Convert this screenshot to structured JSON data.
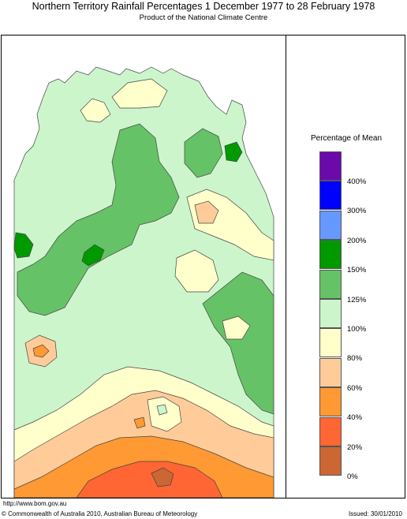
{
  "header": {
    "title": "Northern Territory Rainfall Percentages 1 December 1977 to 28 February 1978",
    "subtitle": "Product of the National Climate Centre"
  },
  "legend": {
    "title": "Percentage of Mean",
    "bins": [
      {
        "label": "400%",
        "color": "#6a0aab"
      },
      {
        "label": "300%",
        "color": "#0000ff"
      },
      {
        "label": "200%",
        "color": "#6699ff"
      },
      {
        "label": "150%",
        "color": "#009900"
      },
      {
        "label": "125%",
        "color": "#66c266"
      },
      {
        "label": "100%",
        "color": "#ccf5cc"
      },
      {
        "label": "80%",
        "color": "#ffffcc"
      },
      {
        "label": "60%",
        "color": "#ffcc99"
      },
      {
        "label": "40%",
        "color": "#ff9933"
      },
      {
        "label": "20%",
        "color": "#ff6633"
      },
      {
        "label": "0%",
        "color": "#cc6633"
      }
    ]
  },
  "footer": {
    "url": "http://www.bom.gov.au",
    "copyright": "© Commonwealth of Australia 2010, Australian Bureau of Meteorology",
    "issued": "Issued: 30/01/2010"
  }
}
